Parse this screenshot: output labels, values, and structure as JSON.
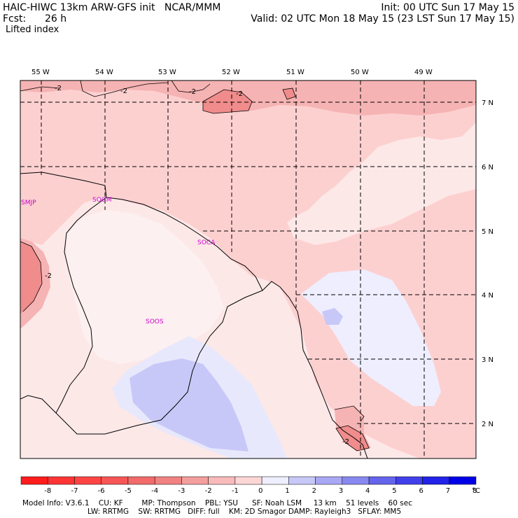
{
  "header": {
    "model_line": "HAIC-HIWC 13km ARW-GFS init   NCAR/MMM",
    "fcst_label": "Fcst:",
    "fcst_value": "26 h",
    "init_label": "Init: 00 UTC Sun 17 May 15",
    "valid_label": "Valid: 02 UTC Mon 18 May 15 (23 LST Sun 17 May 15)",
    "field_name": "Lifted index"
  },
  "map": {
    "lon_labels": [
      "55 W",
      "54 W",
      "53 W",
      "52 W",
      "51 W",
      "50 W",
      "49 W"
    ],
    "lat_labels": [
      "7 N",
      "6 N",
      "5 N",
      "4 N",
      "3 N",
      "2 N"
    ],
    "stations": [
      {
        "id": "SMJP"
      },
      {
        "id": "SOGM"
      },
      {
        "id": "SOCA"
      },
      {
        "id": "SOOS"
      }
    ],
    "contour_labels": [
      "-2",
      "-2",
      "-2",
      "-2",
      "-2",
      "-2"
    ],
    "colors": {
      "land_boundary": "#000000",
      "graticule": "#000000",
      "station": "#cc00cc",
      "li_minus2": "#f6b3b3",
      "li_minus1": "#fdd0d0",
      "li_0": "#fde8e8",
      "li_plus1": "#e8e8fc",
      "li_plus2": "#c8c8f8",
      "li_minus3": "#f08c8c"
    }
  },
  "colorbar": {
    "ticks": [
      "-8",
      "-7",
      "-6",
      "-5",
      "-4",
      "-3",
      "-2",
      "-1",
      "0",
      "1",
      "2",
      "3",
      "4",
      "5",
      "6",
      "7",
      "8"
    ],
    "unit": "°C",
    "colors": [
      "#ff1c1c",
      "#ff3434",
      "#ff4444",
      "#f65656",
      "#f26a6a",
      "#f08282",
      "#f49e9e",
      "#f8baba",
      "#fdd6d6",
      "#eeeeff",
      "#c8c8f8",
      "#a8a8f4",
      "#8888f0",
      "#6464ec",
      "#4040ea",
      "#2222e8",
      "#0000e6"
    ]
  },
  "footer": {
    "line1": "Model Info: V3.6.1    CU: KF        MP: Thompson    PBL: YSU      SF: Noah LSM     13 km    51 levels    60 sec",
    "line2": "LW: RRTMG    SW: RRTMG   DIFF: full    KM: 2D Smagor DAMP: Rayleigh3   SFLAY: MM5"
  }
}
